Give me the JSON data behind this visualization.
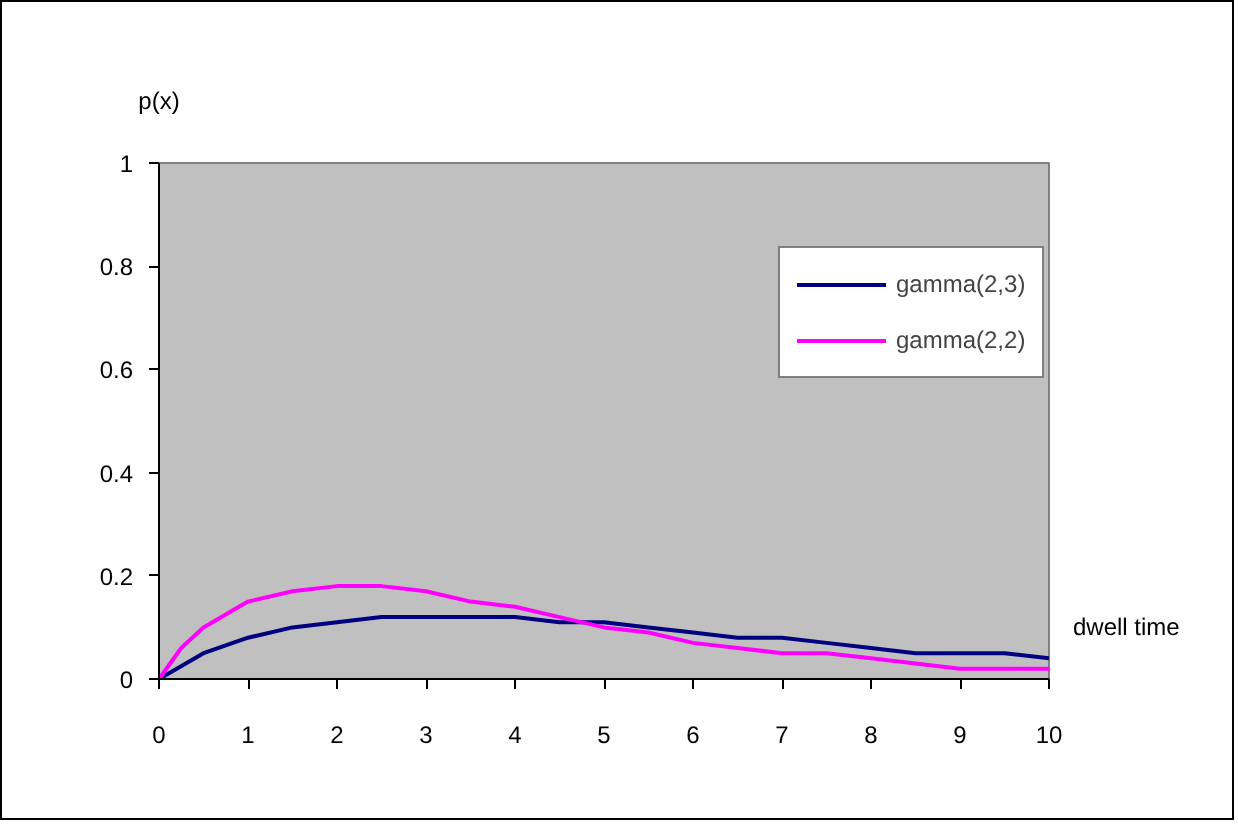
{
  "chart_data": {
    "type": "line",
    "xlabel": "dwell time",
    "ylabel": "p(x)",
    "xlim": [
      0,
      10
    ],
    "xticks": [
      0,
      1,
      2,
      3,
      4,
      5,
      6,
      7,
      8,
      9,
      10
    ],
    "ylim": [
      0,
      1
    ],
    "yticks": [
      0,
      0.2,
      0.4,
      0.6,
      0.8,
      1
    ],
    "grid": false,
    "legend": "top right",
    "marker": "none",
    "line_style": "solid",
    "series": [
      {
        "name": "gamma(2,3)",
        "color": "#000080",
        "x": [
          0,
          0.5,
          1,
          1.5,
          2,
          2.5,
          3,
          3.5,
          4,
          4.5,
          5,
          5.5,
          6,
          6.5,
          7,
          7.5,
          8,
          8.5,
          9,
          9.5,
          10
        ],
        "values": [
          0,
          0.05,
          0.08,
          0.1,
          0.11,
          0.12,
          0.12,
          0.12,
          0.12,
          0.11,
          0.11,
          0.1,
          0.09,
          0.08,
          0.08,
          0.07,
          0.06,
          0.05,
          0.05,
          0.05,
          0.04
        ]
      },
      {
        "name": "gamma(2,2)",
        "color": "#ff00ff",
        "x": [
          0,
          0.25,
          0.5,
          1,
          1.5,
          2,
          2.5,
          3,
          3.5,
          4,
          4.5,
          5,
          5.5,
          6,
          6.5,
          7,
          7.5,
          8,
          8.5,
          9,
          9.5,
          10
        ],
        "values": [
          0,
          0.06,
          0.1,
          0.15,
          0.17,
          0.18,
          0.18,
          0.17,
          0.15,
          0.14,
          0.12,
          0.1,
          0.09,
          0.07,
          0.06,
          0.05,
          0.05,
          0.04,
          0.03,
          0.02,
          0.02,
          0.02
        ]
      }
    ]
  }
}
